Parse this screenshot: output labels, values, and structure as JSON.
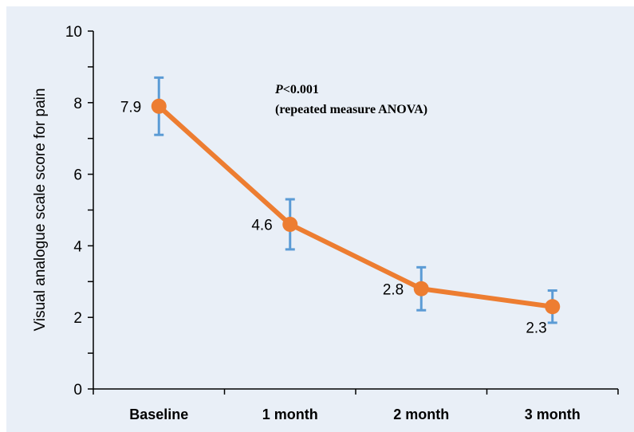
{
  "chart_data": {
    "type": "line",
    "categories": [
      "Baseline",
      "1 month",
      "2 month",
      "3 month"
    ],
    "series": [
      {
        "values": [
          7.9,
          4.6,
          2.8,
          2.3
        ],
        "error_low": [
          7.1,
          3.9,
          2.2,
          1.85
        ],
        "error_high": [
          8.7,
          5.3,
          3.4,
          2.75
        ],
        "color": "#ED7D31",
        "error_color": "#5B9BD5"
      }
    ],
    "data_labels": [
      "7.9",
      "4.6",
      "2.8",
      "2.3"
    ],
    "ylabel": "Visual analogue scale score for pain",
    "xlabel": "",
    "ylim": [
      0,
      10
    ],
    "yticks": [
      0,
      2,
      4,
      6,
      8,
      10
    ],
    "ytick_labels": [
      "0",
      "2",
      "4",
      "6",
      "8",
      "10"
    ],
    "annotation": {
      "p_label": "P",
      "p_value": "<0.001",
      "line2": "(repeated measure ANOVA)"
    },
    "background_color": "#E9EFF7",
    "grid": false
  }
}
